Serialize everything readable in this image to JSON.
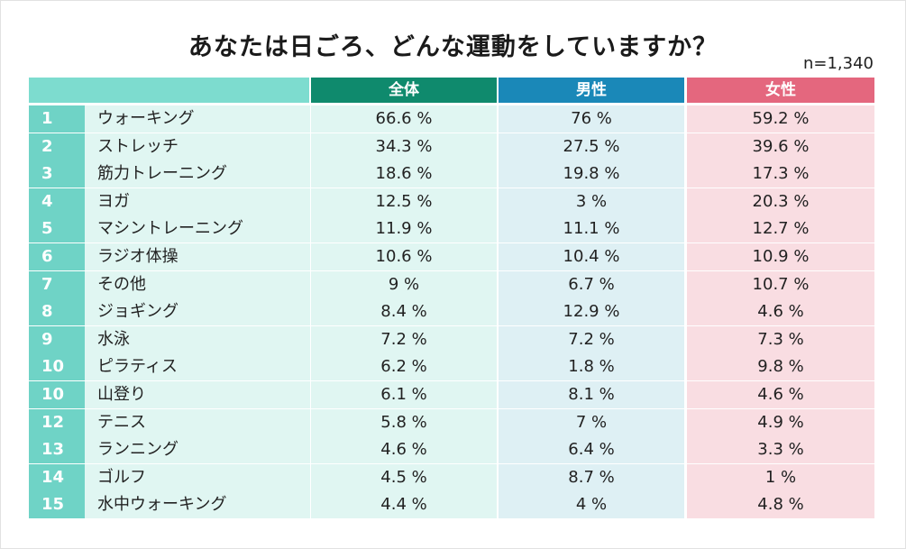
{
  "title": "あなたは日ごろ、どんな運動をしていますか？",
  "sample_size": "n=1,340",
  "columns": {
    "all": "全体",
    "male": "男性",
    "female": "女性"
  },
  "colors": {
    "all_header": "#0f8a6d",
    "male_header": "#1a88b8",
    "female_header": "#e4677e",
    "rank_column": "#6fd3c6"
  },
  "chart_data": {
    "type": "table",
    "title": "あなたは日ごろ、どんな運動をしていますか？",
    "columns": [
      "全体",
      "男性",
      "女性"
    ],
    "rows": [
      {
        "rank": "1",
        "activity": "ウォーキング",
        "all": "66.6 %",
        "male": "76 %",
        "female": "59.2 %"
      },
      {
        "rank": "2",
        "activity": "ストレッチ",
        "all": "34.3 %",
        "male": "27.5 %",
        "female": "39.6 %"
      },
      {
        "rank": "3",
        "activity": "筋力トレーニング",
        "all": "18.6 %",
        "male": "19.8 %",
        "female": "17.3 %"
      },
      {
        "rank": "4",
        "activity": "ヨガ",
        "all": "12.5 %",
        "male": "3 %",
        "female": "20.3 %"
      },
      {
        "rank": "5",
        "activity": "マシントレーニング",
        "all": "11.9 %",
        "male": "11.1 %",
        "female": "12.7 %"
      },
      {
        "rank": "6",
        "activity": "ラジオ体操",
        "all": "10.6 %",
        "male": "10.4 %",
        "female": "10.9 %"
      },
      {
        "rank": "7",
        "activity": "その他",
        "all": "9 %",
        "male": "6.7 %",
        "female": "10.7 %"
      },
      {
        "rank": "8",
        "activity": "ジョギング",
        "all": "8.4 %",
        "male": "12.9 %",
        "female": "4.6 %"
      },
      {
        "rank": "9",
        "activity": "水泳",
        "all": "7.2 %",
        "male": "7.2 %",
        "female": "7.3 %"
      },
      {
        "rank": "10",
        "activity": "ピラティス",
        "all": "6.2 %",
        "male": "1.8 %",
        "female": "9.8 %"
      },
      {
        "rank": "10",
        "activity": "山登り",
        "all": "6.1 %",
        "male": "8.1 %",
        "female": "4.6 %"
      },
      {
        "rank": "12",
        "activity": "テニス",
        "all": "5.8 %",
        "male": "7 %",
        "female": "4.9 %"
      },
      {
        "rank": "13",
        "activity": "ランニング",
        "all": "4.6 %",
        "male": "6.4 %",
        "female": "3.3 %"
      },
      {
        "rank": "14",
        "activity": "ゴルフ",
        "all": "4.5 %",
        "male": "8.7 %",
        "female": "1 %"
      },
      {
        "rank": "15",
        "activity": "水中ウォーキング",
        "all": "4.4 %",
        "male": "4 %",
        "female": "4.8 %"
      }
    ]
  }
}
